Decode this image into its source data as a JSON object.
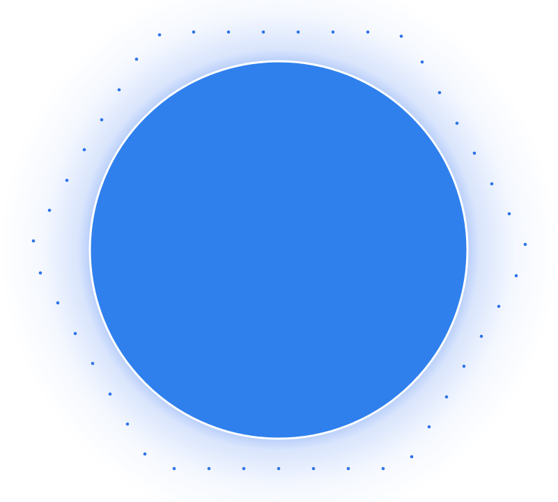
{
  "colors": {
    "circle_fill": "#2f80ed",
    "circle_border": "#ffffff",
    "glow": "#2f6ff0",
    "dots": "#2f74e8"
  },
  "shapes": {
    "main": "filled-circle",
    "ring": "dotted-hexagon"
  }
}
